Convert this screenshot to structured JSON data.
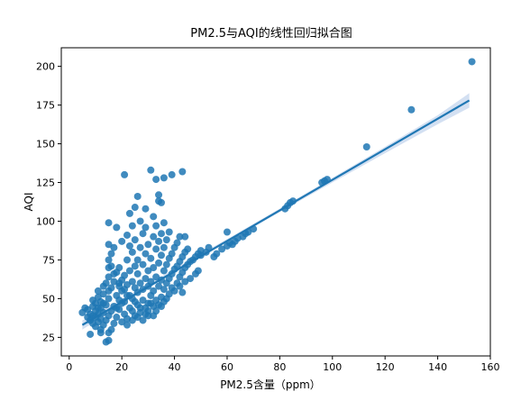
{
  "chart_data": {
    "type": "scatter",
    "title": "PM2.5与AQI的线性回归拟合图",
    "xlabel": "PM2.5含量（ppm）",
    "ylabel": "AQI",
    "xlim": [
      -3,
      160
    ],
    "ylim": [
      13,
      212
    ],
    "xticks": [
      0,
      20,
      40,
      60,
      80,
      100,
      120,
      140,
      160
    ],
    "yticks": [
      25,
      50,
      75,
      100,
      125,
      150,
      175,
      200
    ],
    "grid": false,
    "legend": "none",
    "colors": {
      "points": "#1f77b4",
      "line": "#1f77b4",
      "band": "#aec7e8"
    },
    "regression": {
      "x": [
        5,
        152
      ],
      "y": [
        33,
        178
      ],
      "ci_lower_x": [
        5,
        20,
        40,
        60,
        80,
        100,
        120,
        140,
        152
      ],
      "ci_lower_y": [
        30.0,
        46.5,
        66.8,
        86.5,
        105.9,
        125.0,
        143.9,
        162.6,
        173.3
      ],
      "ci_upper_x": [
        5,
        20,
        40,
        60,
        80,
        100,
        120,
        140,
        152
      ],
      "ci_upper_y": [
        36.0,
        49.5,
        69.2,
        88.5,
        108.1,
        128.0,
        148.1,
        168.4,
        182.7
      ]
    },
    "points": [
      [
        5,
        41
      ],
      [
        6,
        44
      ],
      [
        7,
        38
      ],
      [
        7,
        43
      ],
      [
        8,
        27
      ],
      [
        8,
        36
      ],
      [
        8,
        40
      ],
      [
        9,
        34
      ],
      [
        9,
        45
      ],
      [
        9,
        49
      ],
      [
        10,
        38
      ],
      [
        10,
        42
      ],
      [
        10,
        47
      ],
      [
        11,
        35
      ],
      [
        11,
        40
      ],
      [
        11,
        51
      ],
      [
        12,
        30
      ],
      [
        12,
        37
      ],
      [
        12,
        44
      ],
      [
        12,
        48
      ],
      [
        13,
        33
      ],
      [
        13,
        41
      ],
      [
        13,
        53
      ],
      [
        13,
        58
      ],
      [
        14,
        36
      ],
      [
        14,
        46
      ],
      [
        14,
        22
      ],
      [
        15,
        23
      ],
      [
        15,
        28
      ],
      [
        15,
        39
      ],
      [
        15,
        50
      ],
      [
        15,
        55
      ],
      [
        15,
        64
      ],
      [
        15,
        75
      ],
      [
        15,
        85
      ],
      [
        15,
        99
      ],
      [
        16,
        42
      ],
      [
        16,
        57
      ],
      [
        16,
        71
      ],
      [
        16,
        79
      ],
      [
        17,
        34
      ],
      [
        17,
        45
      ],
      [
        17,
        61
      ],
      [
        17,
        83
      ],
      [
        18,
        38
      ],
      [
        18,
        52
      ],
      [
        18,
        67
      ],
      [
        18,
        96
      ],
      [
        19,
        43
      ],
      [
        19,
        49
      ],
      [
        19,
        58
      ],
      [
        19,
        70
      ],
      [
        20,
        35
      ],
      [
        20,
        55
      ],
      [
        20,
        62
      ],
      [
        20,
        87
      ],
      [
        21,
        40
      ],
      [
        21,
        48
      ],
      [
        21,
        65
      ],
      [
        21,
        130
      ],
      [
        22,
        37
      ],
      [
        22,
        52
      ],
      [
        22,
        59
      ],
      [
        22,
        75
      ],
      [
        22,
        91
      ],
      [
        23,
        44
      ],
      [
        23,
        68
      ],
      [
        23,
        84
      ],
      [
        23,
        105
      ],
      [
        24,
        36
      ],
      [
        24,
        50
      ],
      [
        24,
        61
      ],
      [
        24,
        80
      ],
      [
        24,
        97
      ],
      [
        25,
        39
      ],
      [
        25,
        57
      ],
      [
        25,
        71
      ],
      [
        25,
        88
      ],
      [
        25,
        109
      ],
      [
        26,
        46
      ],
      [
        26,
        54
      ],
      [
        26,
        66
      ],
      [
        26,
        75
      ],
      [
        26,
        116
      ],
      [
        27,
        41
      ],
      [
        27,
        60
      ],
      [
        27,
        83
      ],
      [
        27,
        100
      ],
      [
        28,
        49
      ],
      [
        28,
        56
      ],
      [
        28,
        72
      ],
      [
        28,
        92
      ],
      [
        29,
        44
      ],
      [
        29,
        63
      ],
      [
        29,
        79
      ],
      [
        29,
        96
      ],
      [
        29,
        108
      ],
      [
        30,
        39
      ],
      [
        30,
        47
      ],
      [
        30,
        58
      ],
      [
        30,
        68
      ],
      [
        30,
        85
      ],
      [
        31,
        52
      ],
      [
        31,
        61
      ],
      [
        31,
        76
      ],
      [
        31,
        133
      ],
      [
        32,
        45
      ],
      [
        32,
        55
      ],
      [
        32,
        70
      ],
      [
        32,
        90
      ],
      [
        32,
        103
      ],
      [
        33,
        49
      ],
      [
        33,
        64
      ],
      [
        33,
        82
      ],
      [
        33,
        97
      ],
      [
        33,
        127
      ],
      [
        34,
        58
      ],
      [
        34,
        73
      ],
      [
        34,
        87
      ],
      [
        34,
        113
      ],
      [
        34,
        117
      ],
      [
        35,
        51
      ],
      [
        35,
        62
      ],
      [
        35,
        78
      ],
      [
        35,
        92
      ],
      [
        35,
        112
      ],
      [
        36,
        56
      ],
      [
        36,
        68
      ],
      [
        36,
        83
      ],
      [
        36,
        99
      ],
      [
        36,
        128
      ],
      [
        37,
        60
      ],
      [
        37,
        72
      ],
      [
        37,
        88
      ],
      [
        38,
        63
      ],
      [
        38,
        76
      ],
      [
        38,
        93
      ],
      [
        39,
        66
      ],
      [
        39,
        79
      ],
      [
        39,
        130
      ],
      [
        40,
        69
      ],
      [
        40,
        83
      ],
      [
        41,
        71
      ],
      [
        41,
        86
      ],
      [
        42,
        64
      ],
      [
        42,
        74
      ],
      [
        42,
        90
      ],
      [
        43,
        67
      ],
      [
        43,
        77
      ],
      [
        43,
        132
      ],
      [
        44,
        70
      ],
      [
        44,
        80
      ],
      [
        44,
        90
      ],
      [
        45,
        72
      ],
      [
        45,
        82
      ],
      [
        46,
        74
      ],
      [
        47,
        75
      ],
      [
        48,
        77
      ],
      [
        49,
        79
      ],
      [
        50,
        78
      ],
      [
        50,
        81
      ],
      [
        52,
        80
      ],
      [
        53,
        83
      ],
      [
        55,
        77
      ],
      [
        56,
        79
      ],
      [
        58,
        82
      ],
      [
        60,
        84
      ],
      [
        60,
        93
      ],
      [
        61,
        86
      ],
      [
        62,
        85
      ],
      [
        63,
        87
      ],
      [
        64,
        89
      ],
      [
        66,
        90
      ],
      [
        67,
        92
      ],
      [
        68,
        93
      ],
      [
        70,
        95
      ],
      [
        82,
        108
      ],
      [
        83,
        110
      ],
      [
        84,
        112
      ],
      [
        85,
        113
      ],
      [
        96,
        125
      ],
      [
        97,
        126
      ],
      [
        98,
        127
      ],
      [
        113,
        148
      ],
      [
        130,
        172
      ],
      [
        153,
        203
      ],
      [
        10,
        32
      ],
      [
        11,
        55
      ],
      [
        12,
        28
      ],
      [
        14,
        60
      ],
      [
        16,
        30
      ],
      [
        18,
        44
      ],
      [
        20,
        47
      ],
      [
        22,
        33
      ],
      [
        24,
        42
      ],
      [
        26,
        38
      ],
      [
        28,
        36
      ],
      [
        30,
        42
      ],
      [
        32,
        39
      ],
      [
        34,
        46
      ],
      [
        36,
        48
      ],
      [
        38,
        53
      ],
      [
        40,
        55
      ],
      [
        42,
        58
      ],
      [
        44,
        61
      ],
      [
        46,
        63
      ],
      [
        48,
        66
      ],
      [
        49,
        68
      ],
      [
        41,
        60
      ],
      [
        43,
        54
      ],
      [
        39,
        57
      ],
      [
        37,
        50
      ],
      [
        35,
        45
      ],
      [
        33,
        42
      ],
      [
        31,
        47
      ],
      [
        29,
        40
      ],
      [
        27,
        44
      ],
      [
        25,
        48
      ],
      [
        23,
        52
      ],
      [
        21,
        56
      ],
      [
        19,
        60
      ],
      [
        17,
        66
      ],
      [
        15,
        70
      ],
      [
        13,
        47
      ],
      [
        11,
        44
      ],
      [
        9,
        39
      ]
    ]
  }
}
